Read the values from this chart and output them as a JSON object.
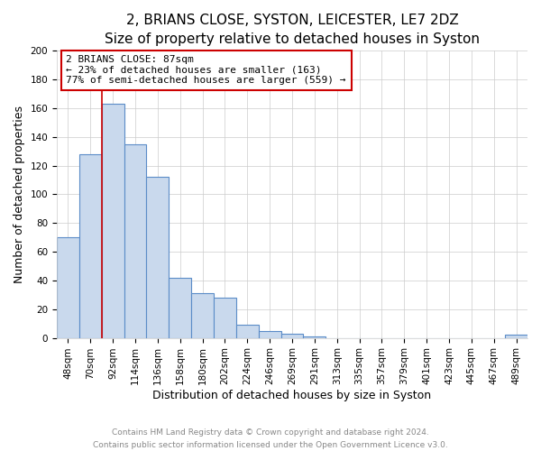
{
  "title": "2, BRIANS CLOSE, SYSTON, LEICESTER, LE7 2DZ",
  "subtitle": "Size of property relative to detached houses in Syston",
  "xlabel": "Distribution of detached houses by size in Syston",
  "ylabel": "Number of detached properties",
  "bar_labels": [
    "48sqm",
    "70sqm",
    "92sqm",
    "114sqm",
    "136sqm",
    "158sqm",
    "180sqm",
    "202sqm",
    "224sqm",
    "246sqm",
    "269sqm",
    "291sqm",
    "313sqm",
    "335sqm",
    "357sqm",
    "379sqm",
    "401sqm",
    "423sqm",
    "445sqm",
    "467sqm",
    "489sqm"
  ],
  "bar_values": [
    70,
    128,
    163,
    135,
    112,
    42,
    31,
    28,
    9,
    5,
    3,
    1,
    0,
    0,
    0,
    0,
    0,
    0,
    0,
    0,
    2
  ],
  "bar_color": "#c9d9ed",
  "bar_edge_color": "#5b8cc8",
  "red_line_index": 1.5,
  "annotation_title": "2 BRIANS CLOSE: 87sqm",
  "annotation_line1": "← 23% of detached houses are smaller (163)",
  "annotation_line2": "77% of semi-detached houses are larger (559) →",
  "ylim": [
    0,
    200
  ],
  "yticks": [
    0,
    20,
    40,
    60,
    80,
    100,
    120,
    140,
    160,
    180,
    200
  ],
  "footer1": "Contains HM Land Registry data © Crown copyright and database right 2024.",
  "footer2": "Contains public sector information licensed under the Open Government Licence v3.0.",
  "bg_color": "#ffffff",
  "plot_bg_color": "#ffffff",
  "grid_color": "#cccccc",
  "title_fontsize": 11,
  "subtitle_fontsize": 9.5,
  "axis_label_fontsize": 9,
  "tick_fontsize": 7.5,
  "annotation_fontsize": 8,
  "annotation_box_color": "white",
  "annotation_box_edge": "#cc0000",
  "red_line_color": "#cc0000"
}
